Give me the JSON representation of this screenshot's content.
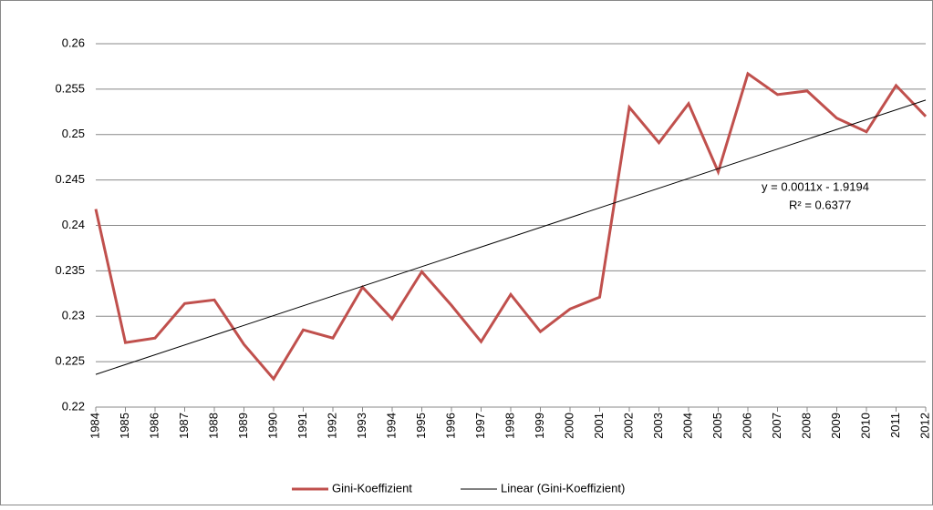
{
  "chart_data": {
    "type": "line",
    "categories": [
      "1984",
      "1985",
      "1986",
      "1987",
      "1988",
      "1989",
      "1990",
      "1991",
      "1992",
      "1993",
      "1994",
      "1995",
      "1996",
      "1997",
      "1998",
      "1999",
      "2000",
      "2001",
      "2002",
      "2003",
      "2004",
      "2005",
      "2006",
      "2007",
      "2008",
      "2009",
      "2010",
      "2011",
      "2012"
    ],
    "series": [
      {
        "name": "Gini-Koeffizient",
        "color": "#c0504d",
        "values": [
          0.2418,
          0.2271,
          0.2276,
          0.2314,
          0.2318,
          0.2269,
          0.2231,
          0.2285,
          0.2276,
          0.2332,
          0.2297,
          0.2349,
          0.2312,
          0.2272,
          0.2324,
          0.2283,
          0.2308,
          0.2321,
          0.253,
          0.2491,
          0.2534,
          0.2459,
          0.2567,
          0.2544,
          0.2548,
          0.2518,
          0.2503,
          0.2554,
          0.252
        ]
      }
    ],
    "trendline": {
      "name": "Linear (Gini-Koeffizient)",
      "color": "#000000",
      "values": [
        0.2236,
        0.2538
      ],
      "equation": "y = 0.0011x - 1.9194",
      "r_squared": "R² = 0.6377"
    },
    "ylim": [
      0.22,
      0.26
    ],
    "yticks": [
      0.22,
      0.225,
      0.23,
      0.235,
      0.24,
      0.245,
      0.25,
      0.255,
      0.26
    ],
    "grid": true,
    "legend": "bottom"
  }
}
